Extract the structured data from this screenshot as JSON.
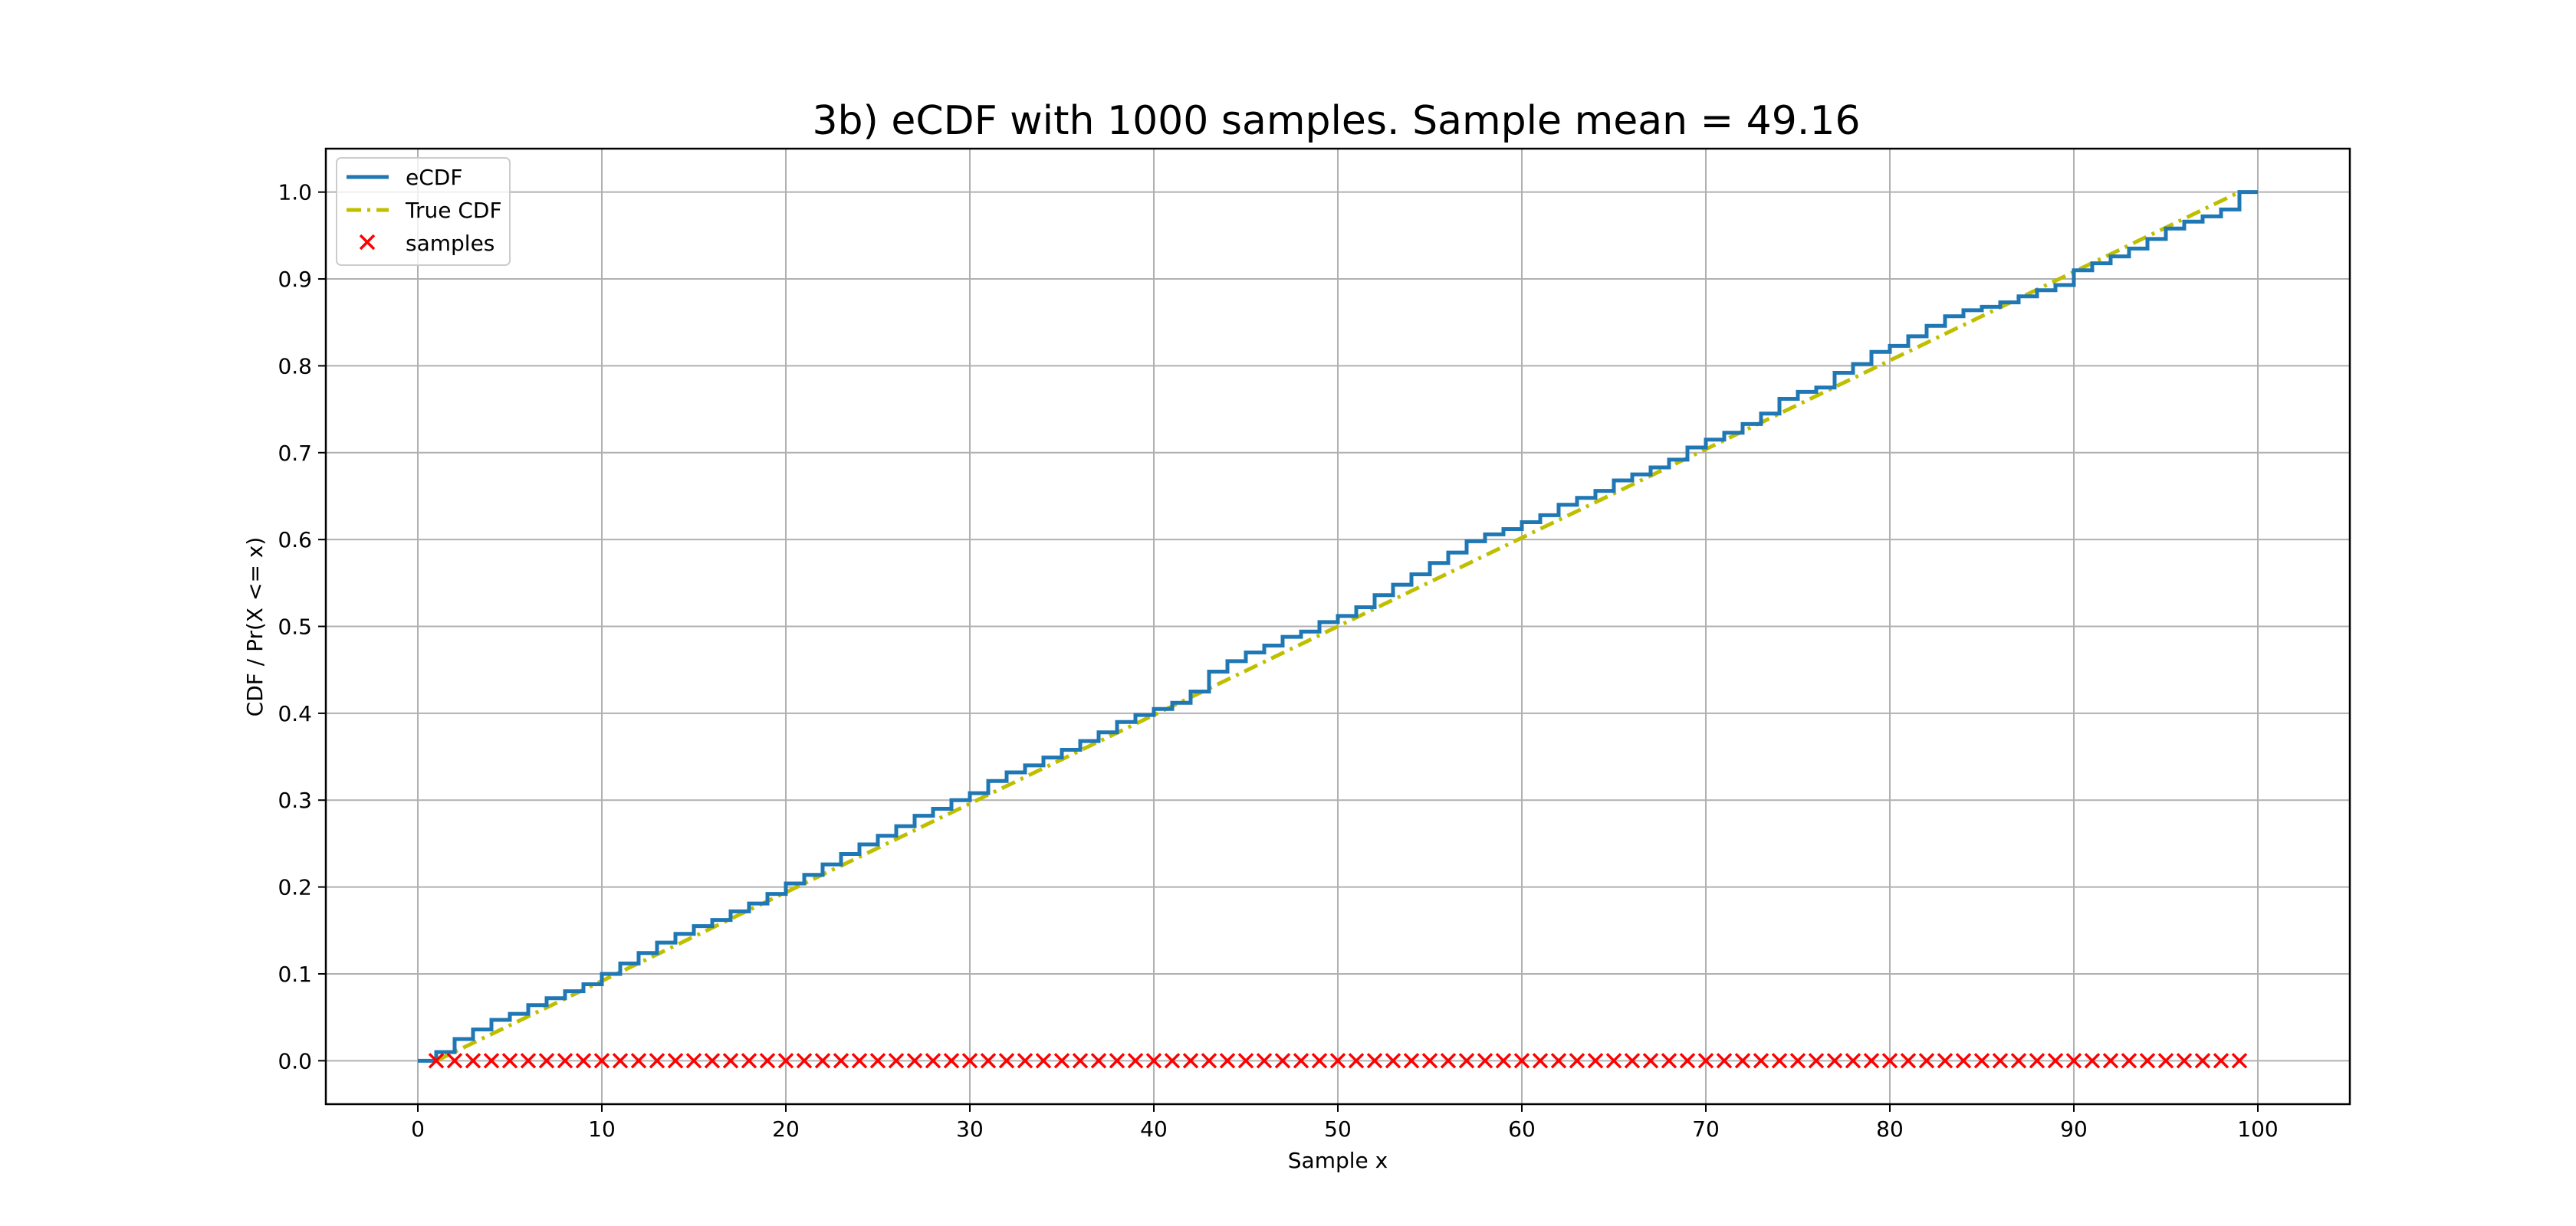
{
  "chart_data": {
    "type": "line",
    "title": "3b) eCDF with 1000 samples. Sample mean = 49.16",
    "xlabel": "Sample x",
    "ylabel": "CDF / Pr(X <= x)",
    "xlim": [
      -5,
      105
    ],
    "ylim": [
      -0.05,
      1.05
    ],
    "xticks": [
      0,
      10,
      20,
      30,
      40,
      50,
      60,
      70,
      80,
      90,
      100
    ],
    "yticks": [
      0.0,
      0.1,
      0.2,
      0.3,
      0.4,
      0.5,
      0.6,
      0.7,
      0.8,
      0.9,
      1.0
    ],
    "xtick_labels": [
      "0",
      "10",
      "20",
      "30",
      "40",
      "50",
      "60",
      "70",
      "80",
      "90",
      "100"
    ],
    "ytick_labels": [
      "0.0",
      "0.1",
      "0.2",
      "0.3",
      "0.4",
      "0.5",
      "0.6",
      "0.7",
      "0.8",
      "0.9",
      "1.0"
    ],
    "grid": true,
    "legend_position": "top-left",
    "series": [
      {
        "name": "eCDF",
        "kind": "step",
        "color": "#1f77b4",
        "x": [
          0,
          1,
          2,
          3,
          4,
          5,
          6,
          7,
          8,
          9,
          10,
          11,
          12,
          13,
          14,
          15,
          16,
          17,
          18,
          19,
          20,
          21,
          22,
          23,
          24,
          25,
          26,
          27,
          28,
          29,
          30,
          31,
          32,
          33,
          34,
          35,
          36,
          37,
          38,
          39,
          40,
          41,
          42,
          43,
          44,
          45,
          46,
          47,
          48,
          49,
          50,
          51,
          52,
          53,
          54,
          55,
          56,
          57,
          58,
          59,
          60,
          61,
          62,
          63,
          64,
          65,
          66,
          67,
          68,
          69,
          70,
          71,
          72,
          73,
          74,
          75,
          76,
          77,
          78,
          79,
          80,
          81,
          82,
          83,
          84,
          85,
          86,
          87,
          88,
          89,
          90,
          91,
          92,
          93,
          94,
          95,
          96,
          97,
          98,
          99,
          100
        ],
        "y": [
          0.0,
          0.01,
          0.025,
          0.036,
          0.047,
          0.054,
          0.064,
          0.072,
          0.08,
          0.088,
          0.1,
          0.112,
          0.124,
          0.136,
          0.146,
          0.155,
          0.162,
          0.172,
          0.181,
          0.192,
          0.204,
          0.214,
          0.226,
          0.238,
          0.249,
          0.259,
          0.27,
          0.282,
          0.29,
          0.3,
          0.308,
          0.322,
          0.332,
          0.34,
          0.349,
          0.358,
          0.368,
          0.378,
          0.39,
          0.398,
          0.405,
          0.412,
          0.425,
          0.448,
          0.46,
          0.47,
          0.478,
          0.488,
          0.494,
          0.505,
          0.512,
          0.522,
          0.536,
          0.548,
          0.56,
          0.573,
          0.585,
          0.598,
          0.606,
          0.612,
          0.62,
          0.628,
          0.64,
          0.648,
          0.656,
          0.668,
          0.675,
          0.683,
          0.692,
          0.706,
          0.715,
          0.723,
          0.733,
          0.745,
          0.762,
          0.77,
          0.775,
          0.792,
          0.802,
          0.816,
          0.823,
          0.834,
          0.846,
          0.857,
          0.864,
          0.868,
          0.873,
          0.88,
          0.887,
          0.893,
          0.91,
          0.918,
          0.926,
          0.935,
          0.946,
          0.958,
          0.966,
          0.972,
          0.98,
          1.0,
          1.0
        ]
      },
      {
        "name": "True CDF",
        "kind": "dashdot",
        "color": "#bfbf00",
        "x": [
          1,
          99
        ],
        "y": [
          0.0,
          1.0
        ]
      },
      {
        "name": "samples",
        "kind": "scatter",
        "marker": "x",
        "color": "#ff0000",
        "x": [
          1,
          2,
          3,
          4,
          5,
          6,
          7,
          8,
          9,
          10,
          11,
          12,
          13,
          14,
          15,
          16,
          17,
          18,
          19,
          20,
          21,
          22,
          23,
          24,
          25,
          26,
          27,
          28,
          29,
          30,
          31,
          32,
          33,
          34,
          35,
          36,
          37,
          38,
          39,
          40,
          41,
          42,
          43,
          44,
          45,
          46,
          47,
          48,
          49,
          50,
          51,
          52,
          53,
          54,
          55,
          56,
          57,
          58,
          59,
          60,
          61,
          62,
          63,
          64,
          65,
          66,
          67,
          68,
          69,
          70,
          71,
          72,
          73,
          74,
          75,
          76,
          77,
          78,
          79,
          80,
          81,
          82,
          83,
          84,
          85,
          86,
          87,
          88,
          89,
          90,
          91,
          92,
          93,
          94,
          95,
          96,
          97,
          98,
          99
        ],
        "y_value": 0.0
      }
    ]
  }
}
